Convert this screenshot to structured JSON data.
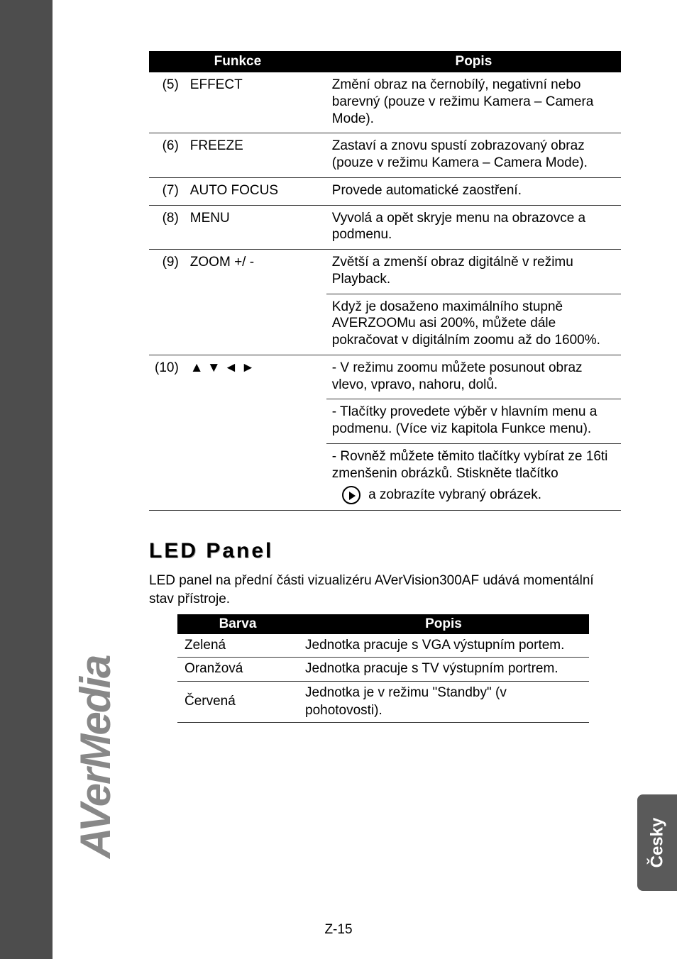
{
  "brand": "AVerMedia",
  "funcTable": {
    "headers": {
      "func": "Funkce",
      "desc": "Popis"
    },
    "rows": [
      {
        "num": "(5)",
        "name": "EFFECT",
        "desc": [
          "Změní obraz na černobílý, negativní nebo barevný (pouze v režimu Kamera – Camera Mode)."
        ]
      },
      {
        "num": "(6)",
        "name": "FREEZE",
        "desc": [
          "Zastaví a znovu spustí zobrazovaný obraz (pouze v režimu Kamera – Camera Mode)."
        ]
      },
      {
        "num": "(7)",
        "name": "AUTO FOCUS",
        "desc": [
          "Provede automatické zaostření."
        ]
      },
      {
        "num": "(8)",
        "name": "MENU",
        "desc": [
          "Vyvolá a opět skryje menu na obrazovce a podmenu."
        ]
      },
      {
        "num": "(9)",
        "name": "ZOOM +/ -",
        "desc": [
          "Zvětší a zmenší obraz digitálně v režimu Playback.",
          "Když je dosaženo maximálního stupně AVERZOOMu asi 200%, můžete dále pokračovat v digitálním zoomu až do 1600%."
        ]
      },
      {
        "num": "(10)",
        "name": "▲ ▼ ◄ ►",
        "desc": [
          "- V režimu zoomu můžete posunout obraz vlevo, vpravo, nahoru, dolů.",
          "- Tlačítky provedete výběr v hlavním menu a podmenu. (Více viz kapitola Funkce menu).",
          "- Rovněž můžete těmito tlačítky vybírat ze 16ti zmenšenin obrázků. Stiskněte tlačítko"
        ],
        "iconTail": " a zobrazíte vybraný obrázek."
      }
    ]
  },
  "ledSection": {
    "title": "LED Panel",
    "intro": "LED panel na přední části vizualizéru AVerVision300AF udává momentální stav přístroje.",
    "headers": {
      "color": "Barva",
      "desc": "Popis"
    },
    "rows": [
      {
        "color": "Zelená",
        "desc": "Jednotka pracuje s VGA výstupním portem."
      },
      {
        "color": "Oranžová",
        "desc": "Jednotka pracuje s TV výstupním portrem."
      },
      {
        "color": "Červená",
        "desc": "Jednotka je v režimu \"Standby\" (v pohotovosti)."
      }
    ]
  },
  "langTab": "Česky",
  "pageNumber": "Z-15"
}
